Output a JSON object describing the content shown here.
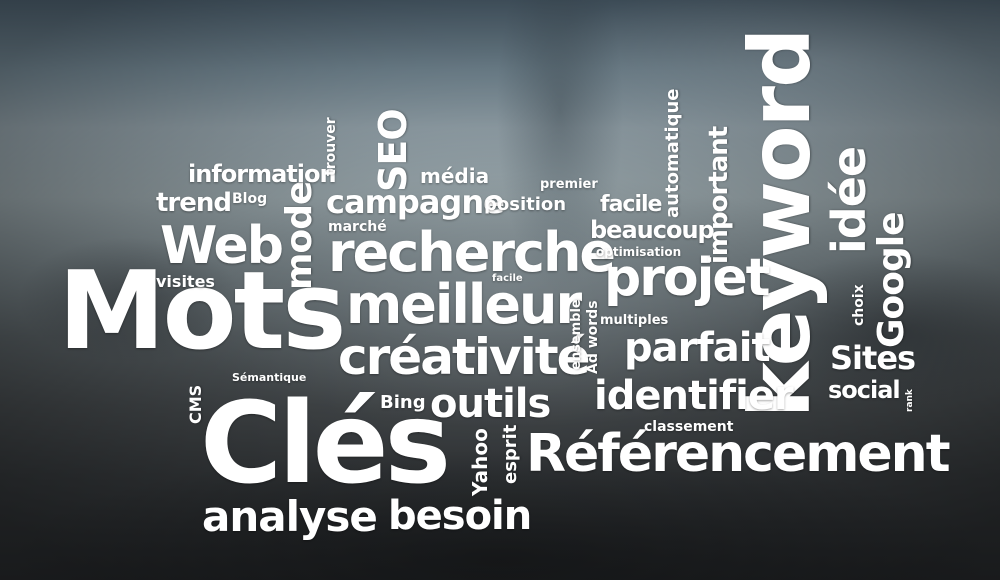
{
  "words": {
    "mots": "Mots",
    "cles": "Clés",
    "keyword": "keyword",
    "referencement": "Référencement",
    "recherche": "recherche",
    "meilleur": "meilleur",
    "creativite": "créativité",
    "projet": "projet",
    "web": "Web",
    "analyse": "analyse",
    "besoin": "besoin",
    "outils": "outils",
    "identifier": "identifier",
    "parfait": "parfait",
    "idee": "idée",
    "google": "Google",
    "sites": "Sites",
    "social": "social",
    "campagne": "campagne",
    "mode": "mode",
    "seo": "SEO",
    "information": "information",
    "trend": "trend",
    "blog": "Blog",
    "visites": "visites",
    "media": "média",
    "trouver": "trouver",
    "position": "position",
    "premier": "premier",
    "marche": "marché",
    "facile": "facile",
    "facile_small": "facile",
    "beaucoup": "beaucoup",
    "optimisation": "optimisation",
    "important": "important",
    "automatique": "automatique",
    "choix": "choix",
    "multiples": "multiples",
    "ad_words": "Ad words",
    "ensemble": "ensemble",
    "classement": "classement",
    "esprit": "esprit",
    "yahoo": "Yahoo",
    "bing": "Bing",
    "semantique": "Sémantique",
    "cms": "CMS",
    "rank": "rank"
  }
}
